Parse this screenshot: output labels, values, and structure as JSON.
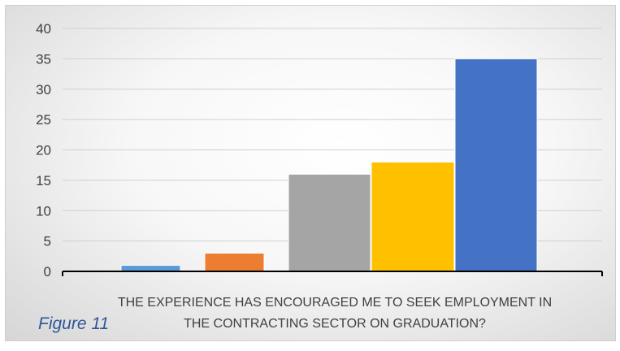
{
  "figure_caption": "Figure 11",
  "chart_data": {
    "type": "bar",
    "title": "",
    "xlabel_lines": [
      "THE EXPERIENCE HAS ENCOURAGED ME TO SEEK EMPLOYMENT IN",
      "THE CONTRACTING SECTOR ON GRADUATION?"
    ],
    "ylabel": "",
    "ylim": [
      0,
      40
    ],
    "yticks": [
      0,
      5,
      10,
      15,
      20,
      25,
      30,
      35,
      40
    ],
    "grid": true,
    "legend": "none",
    "series": [
      {
        "values": [
          1
        ],
        "color": "#5b9bd5"
      },
      {
        "values": [
          3
        ],
        "color": "#ed7d31"
      },
      {
        "values": [
          16
        ],
        "color": "#a5a5a5"
      },
      {
        "values": [
          18
        ],
        "color": "#ffc000"
      },
      {
        "values": [
          35
        ],
        "color": "#4472c4"
      }
    ]
  }
}
